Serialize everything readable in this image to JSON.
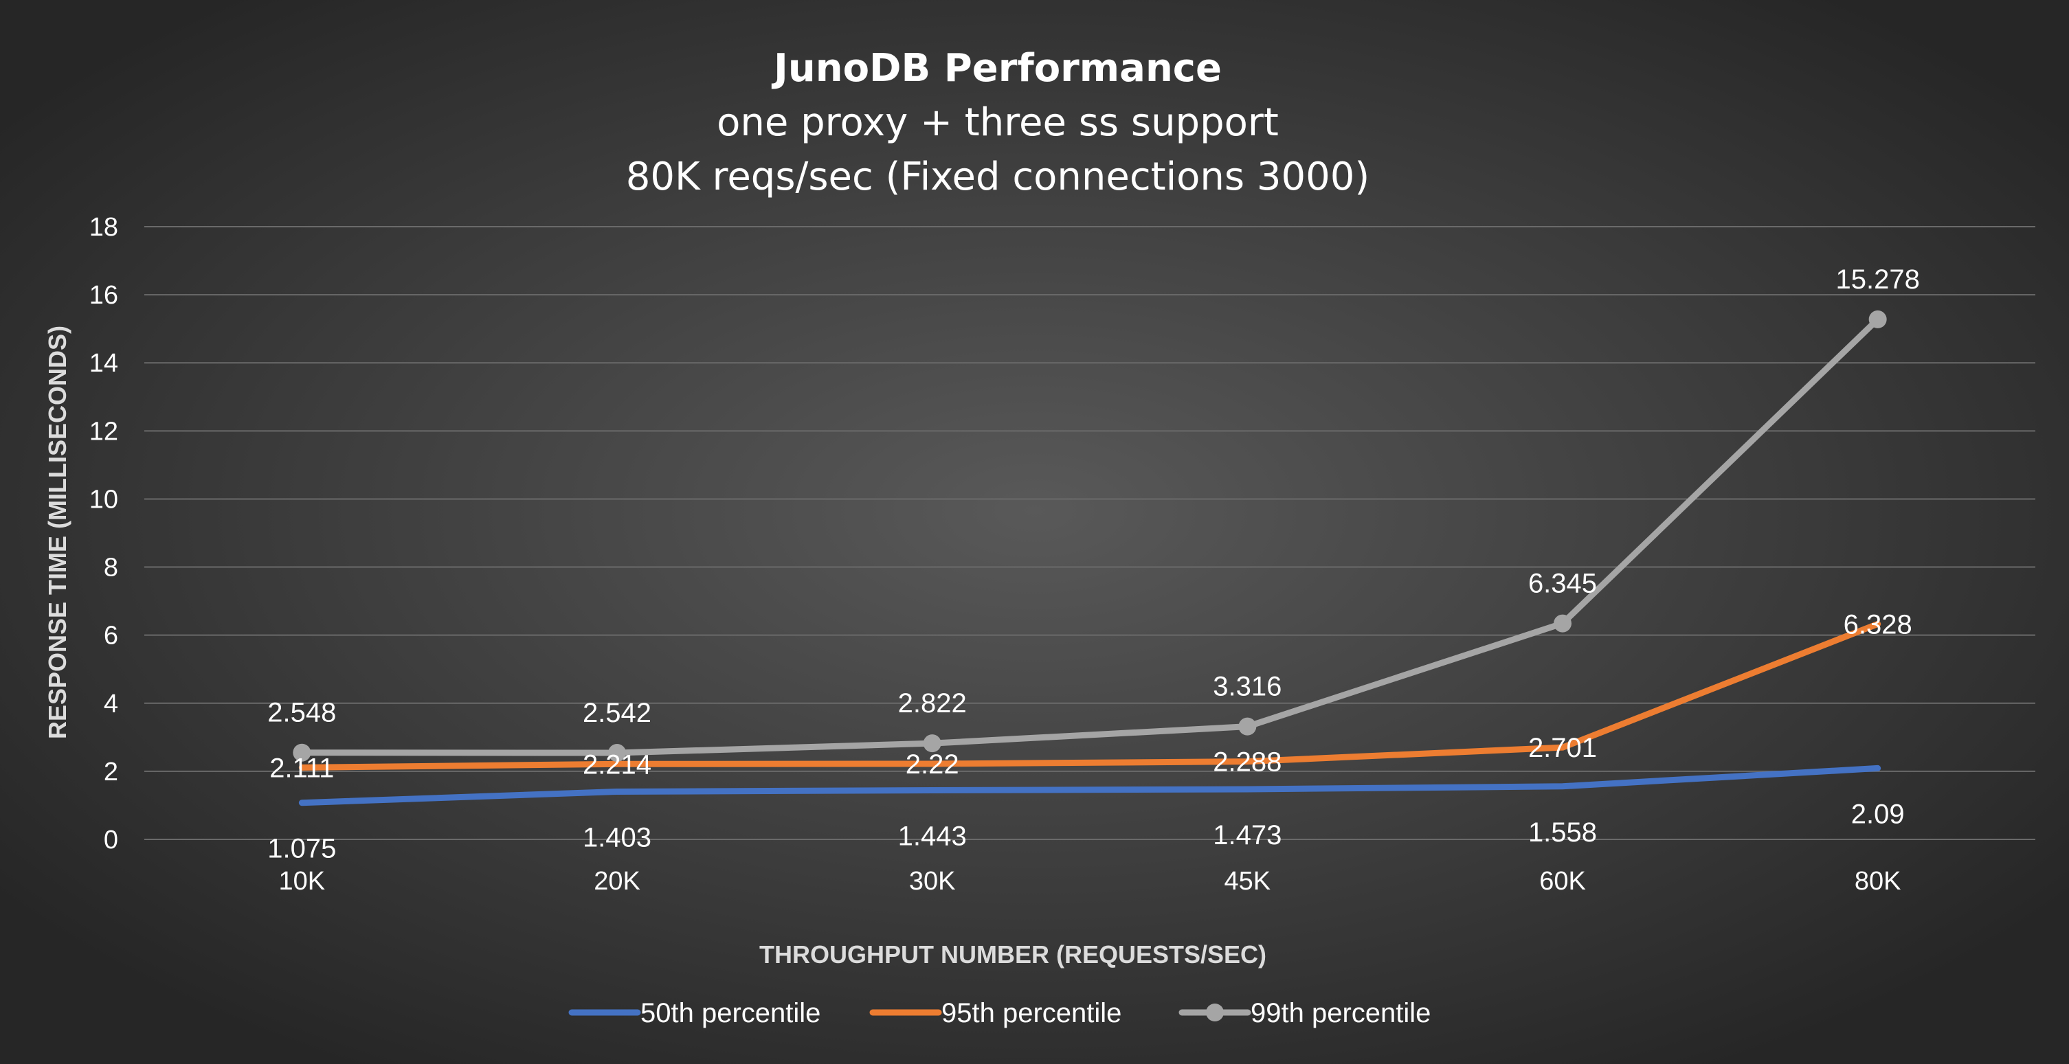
{
  "chart_data": {
    "type": "line",
    "title": "JunoDB Performance",
    "subtitle_lines": [
      "one proxy + three ss support",
      "80K reqs/sec (Fixed connections 3000)"
    ],
    "xlabel": "THROUGHPUT NUMBER  (REQUESTS/SEC)",
    "ylabel": "RESPONSE TIME (MILLISECONDS)",
    "categories": [
      "10K",
      "20K",
      "30K",
      "45K",
      "60K",
      "80K"
    ],
    "ylim": [
      0,
      18
    ],
    "yticks": [
      0,
      2,
      4,
      6,
      8,
      10,
      12,
      14,
      16,
      18
    ],
    "grid": true,
    "legend_position": "bottom",
    "series": [
      {
        "name": "50th percentile",
        "values": [
          1.075,
          1.403,
          1.443,
          1.473,
          1.558,
          2.09
        ],
        "labels": [
          "1.075",
          "1.403",
          "1.443",
          "1.473",
          "1.558",
          "2.09"
        ],
        "color": "#4472c4",
        "markers": false,
        "label_side": "below"
      },
      {
        "name": "95th percentile",
        "values": [
          2.111,
          2.214,
          2.22,
          2.288,
          2.701,
          6.328
        ],
        "labels": [
          "2.111",
          "2.214",
          "2.22",
          "2.288",
          "2.701",
          "6.328"
        ],
        "color": "#ed7d31",
        "markers": false,
        "label_side": "center"
      },
      {
        "name": "99th percentile",
        "values": [
          2.548,
          2.542,
          2.822,
          3.316,
          6.345,
          15.278
        ],
        "labels": [
          "2.548",
          "2.542",
          "2.822",
          "3.316",
          "6.345",
          "15.278"
        ],
        "color": "#a5a5a5",
        "markers": true,
        "label_side": "above"
      }
    ]
  }
}
